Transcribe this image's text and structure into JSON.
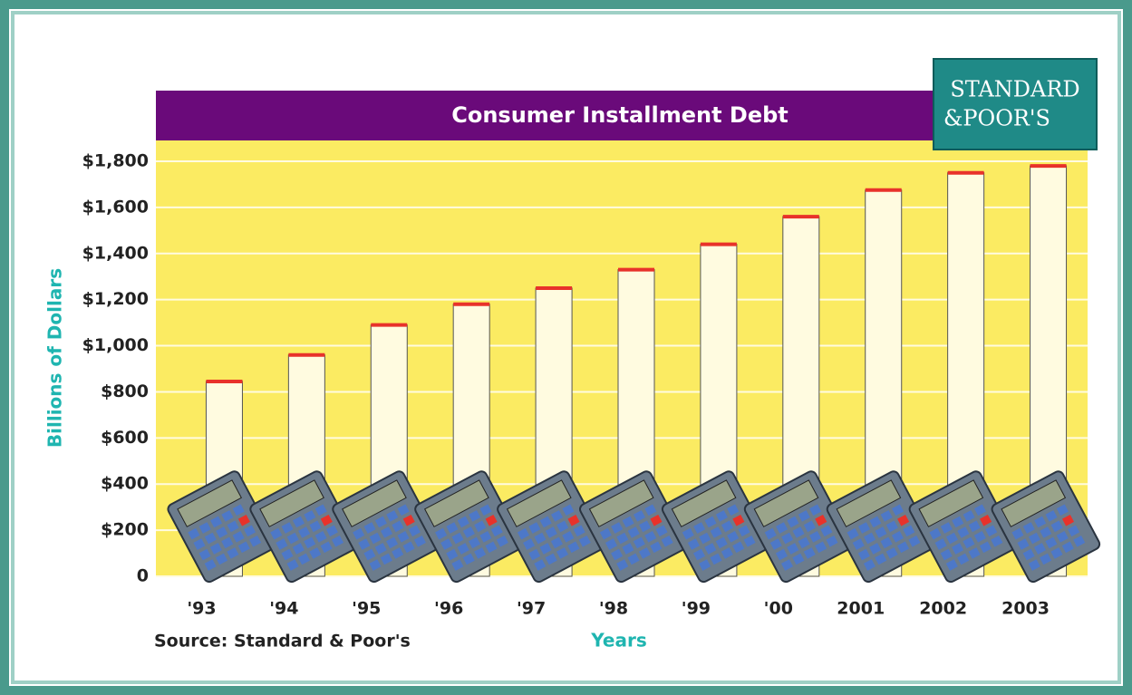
{
  "chart_data": {
    "type": "bar",
    "title": "Consumer Installment Debt",
    "logo": [
      "STANDARD",
      "&POOR'S"
    ],
    "y_label": "Billions of Dollars",
    "x_label": "Years",
    "source": "Source: Standard & Poor's",
    "categories": [
      "'93",
      "'94",
      "'95",
      "'96",
      "'97",
      "'98",
      "'99",
      "'00",
      "2001",
      "2002",
      "2003"
    ],
    "values": [
      845,
      960,
      1090,
      1180,
      1250,
      1330,
      1440,
      1560,
      1675,
      1750,
      1780
    ],
    "color": "#fffbe0",
    "cap_color": "#e8322a",
    "ylim": [
      0,
      1800
    ],
    "yticks": [
      0,
      {
        "value": 200,
        "label": "$200"
      },
      {
        "value": 400,
        "label": "$400"
      },
      {
        "value": 600,
        "label": "$600"
      },
      {
        "value": 800,
        "label": "$800"
      },
      {
        "value": 1000,
        "label": "$1,000"
      },
      {
        "value": 1200,
        "label": "$1,200"
      },
      {
        "value": 1400,
        "label": "$1,400"
      },
      {
        "value": 1600,
        "label": "$1,600"
      },
      {
        "value": 1800,
        "label": "$1,800"
      }
    ],
    "grid": true
  }
}
